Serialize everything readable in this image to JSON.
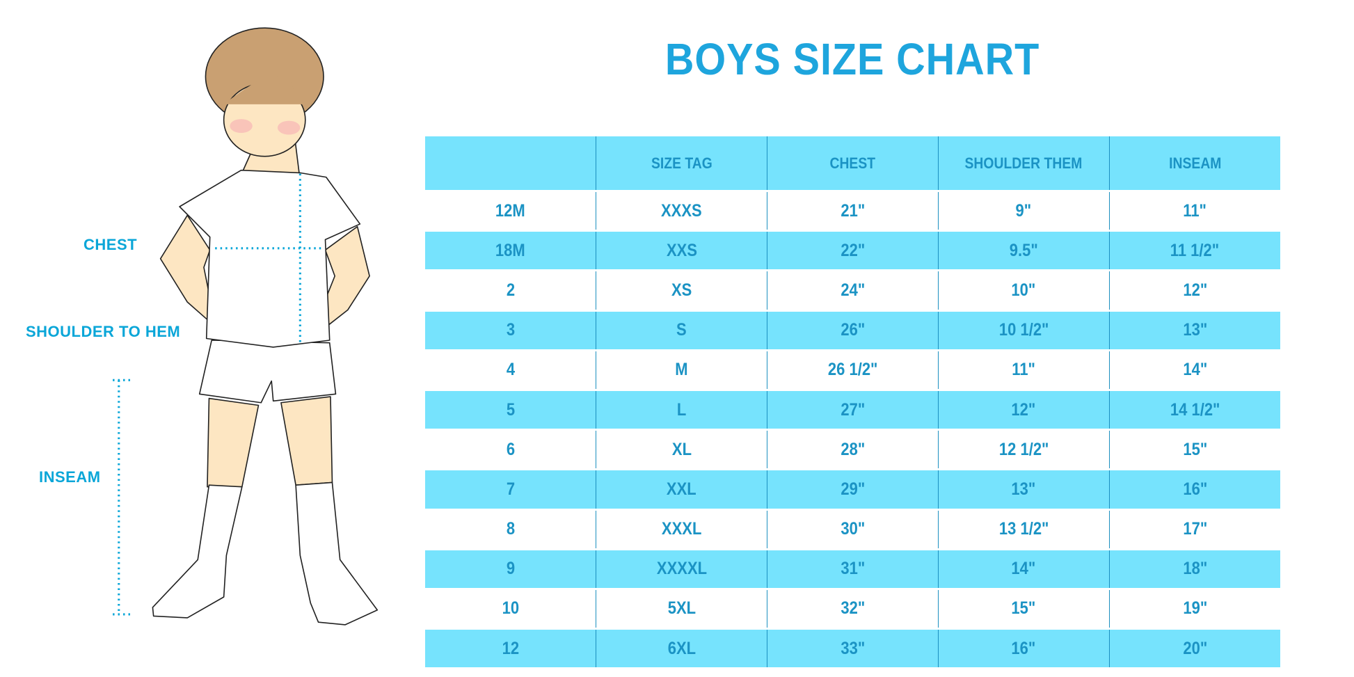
{
  "title": "BOYS SIZE CHART",
  "colors": {
    "accent": "#1ea5dd",
    "row_fill": "#76e3fd",
    "table_text": "#1b93c4",
    "hair": "#c9a072",
    "skin": "#fde6c2"
  },
  "figure": {
    "labels": {
      "chest": "CHEST",
      "shoulder_to_hem": "SHOULDER TO HEM",
      "inseam": "INSEAM"
    }
  },
  "table": {
    "headers": [
      "",
      "SIZE TAG",
      "CHEST",
      "SHOULDER THEM",
      "INSEAM"
    ],
    "rows": [
      [
        "12M",
        "XXXS",
        "21\"",
        "9\"",
        "11\""
      ],
      [
        "18M",
        "XXS",
        "22\"",
        "9.5\"",
        "11 1/2\""
      ],
      [
        "2",
        "XS",
        "24\"",
        "10\"",
        "12\""
      ],
      [
        "3",
        "S",
        "26\"",
        "10 1/2\"",
        "13\""
      ],
      [
        "4",
        "M",
        "26 1/2\"",
        "11\"",
        "14\""
      ],
      [
        "5",
        "L",
        "27\"",
        "12\"",
        "14 1/2\""
      ],
      [
        "6",
        "XL",
        "28\"",
        "12 1/2\"",
        "15\""
      ],
      [
        "7",
        "XXL",
        "29\"",
        "13\"",
        "16\""
      ],
      [
        "8",
        "XXXL",
        "30\"",
        "13 1/2\"",
        "17\""
      ],
      [
        "9",
        "XXXXL",
        "31\"",
        "14\"",
        "18\""
      ],
      [
        "10",
        "5XL",
        "32\"",
        "15\"",
        "19\""
      ],
      [
        "12",
        "6XL",
        "33\"",
        "16\"",
        "20\""
      ]
    ]
  }
}
